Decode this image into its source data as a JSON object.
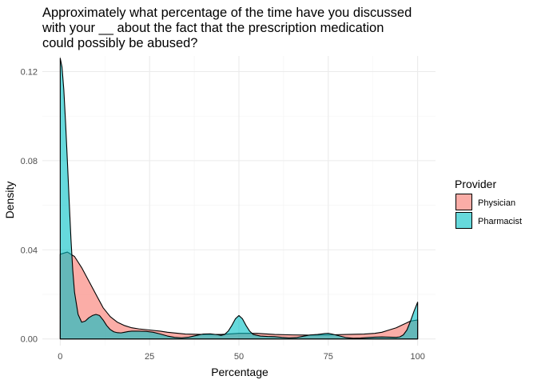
{
  "chart_data": {
    "type": "area",
    "subtype": "density",
    "title_lines": [
      "Approximately what percentage of the time have you discussed",
      "with your __ about the fact that the prescription medication",
      "could possibly be abused?"
    ],
    "xlabel": "Percentage",
    "ylabel": "Density",
    "xlim": [
      -5,
      105
    ],
    "ylim": [
      -0.003,
      0.127
    ],
    "x_ticks": [
      0,
      25,
      50,
      75,
      100
    ],
    "x_tick_labels": [
      "0",
      "25",
      "50",
      "75",
      "100"
    ],
    "y_ticks": [
      0,
      0.04,
      0.08,
      0.12
    ],
    "y_tick_labels": [
      "0.00",
      "0.04",
      "0.08",
      "0.12"
    ],
    "grid": true,
    "legend": {
      "title": "Provider",
      "placement": "right"
    },
    "series": [
      {
        "name": "Physician",
        "color": "#F8766D",
        "points": [
          [
            0,
            0.038
          ],
          [
            2,
            0.039
          ],
          [
            4,
            0.037
          ],
          [
            6,
            0.032
          ],
          [
            8,
            0.026
          ],
          [
            10,
            0.02
          ],
          [
            12,
            0.014
          ],
          [
            14,
            0.01
          ],
          [
            16,
            0.0075
          ],
          [
            18,
            0.006
          ],
          [
            20,
            0.005
          ],
          [
            22,
            0.0045
          ],
          [
            25,
            0.004
          ],
          [
            28,
            0.0035
          ],
          [
            30,
            0.003
          ],
          [
            35,
            0.0022
          ],
          [
            40,
            0.002
          ],
          [
            45,
            0.002
          ],
          [
            50,
            0.0025
          ],
          [
            55,
            0.0025
          ],
          [
            60,
            0.002
          ],
          [
            65,
            0.0018
          ],
          [
            70,
            0.0017
          ],
          [
            75,
            0.0018
          ],
          [
            80,
            0.002
          ],
          [
            85,
            0.0022
          ],
          [
            88,
            0.0025
          ],
          [
            90,
            0.003
          ],
          [
            92,
            0.004
          ],
          [
            94,
            0.005
          ],
          [
            96,
            0.0065
          ],
          [
            98,
            0.008
          ],
          [
            100,
            0.0085
          ]
        ]
      },
      {
        "name": "Pharmacist",
        "color": "#00BFC4",
        "points": [
          [
            0,
            0.126
          ],
          [
            0.5,
            0.122
          ],
          [
            1,
            0.112
          ],
          [
            1.5,
            0.097
          ],
          [
            2,
            0.08
          ],
          [
            2.5,
            0.062
          ],
          [
            3,
            0.045
          ],
          [
            3.5,
            0.031
          ],
          [
            4,
            0.021
          ],
          [
            5,
            0.011
          ],
          [
            6,
            0.0075
          ],
          [
            7,
            0.008
          ],
          [
            8,
            0.0095
          ],
          [
            9,
            0.0105
          ],
          [
            10,
            0.011
          ],
          [
            11,
            0.0105
          ],
          [
            12,
            0.0085
          ],
          [
            13,
            0.006
          ],
          [
            14,
            0.0042
          ],
          [
            15,
            0.0032
          ],
          [
            16,
            0.0028
          ],
          [
            17,
            0.0027
          ],
          [
            18,
            0.003
          ],
          [
            19,
            0.0033
          ],
          [
            20,
            0.0035
          ],
          [
            22,
            0.0035
          ],
          [
            24,
            0.0034
          ],
          [
            26,
            0.003
          ],
          [
            28,
            0.0022
          ],
          [
            30,
            0.0013
          ],
          [
            32,
            0.0007
          ],
          [
            34,
            0.0005
          ],
          [
            36,
            0.0008
          ],
          [
            38,
            0.0015
          ],
          [
            40,
            0.0022
          ],
          [
            42,
            0.0023
          ],
          [
            44,
            0.0019
          ],
          [
            45,
            0.0016
          ],
          [
            46,
            0.002
          ],
          [
            47,
            0.0035
          ],
          [
            48,
            0.006
          ],
          [
            49,
            0.009
          ],
          [
            50,
            0.0105
          ],
          [
            51,
            0.009
          ],
          [
            52,
            0.006
          ],
          [
            53,
            0.0035
          ],
          [
            54,
            0.002
          ],
          [
            56,
            0.0013
          ],
          [
            58,
            0.0011
          ],
          [
            60,
            0.001
          ],
          [
            62,
            0.0007
          ],
          [
            64,
            0.0005
          ],
          [
            66,
            0.0006
          ],
          [
            68,
            0.0012
          ],
          [
            70,
            0.0018
          ],
          [
            72,
            0.002
          ],
          [
            73,
            0.0022
          ],
          [
            74,
            0.0024
          ],
          [
            75,
            0.0025
          ],
          [
            76,
            0.0022
          ],
          [
            78,
            0.0014
          ],
          [
            80,
            0.0006
          ],
          [
            82,
            0.0003
          ],
          [
            84,
            0.0004
          ],
          [
            86,
            0.0006
          ],
          [
            88,
            0.0008
          ],
          [
            90,
            0.0009
          ],
          [
            92,
            0.0008
          ],
          [
            94,
            0.0007
          ],
          [
            95,
            0.0009
          ],
          [
            96,
            0.0018
          ],
          [
            97,
            0.004
          ],
          [
            98,
            0.008
          ],
          [
            99,
            0.0125
          ],
          [
            100,
            0.0165
          ]
        ]
      }
    ]
  }
}
